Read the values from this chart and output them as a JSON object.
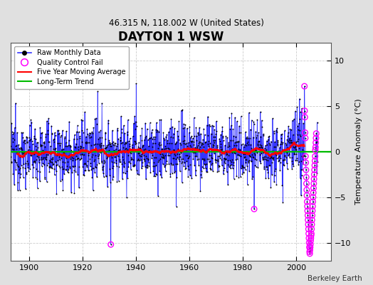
{
  "title": "DAYTON 1 WSW",
  "subtitle": "46.315 N, 118.002 W (United States)",
  "ylabel": "Temperature Anomaly (°C)",
  "credit": "Berkeley Earth",
  "xmin": 1893,
  "xmax": 2013,
  "ymin": -12,
  "ymax": 12,
  "yticks": [
    -10,
    -5,
    0,
    5,
    10
  ],
  "xticks": [
    1900,
    1920,
    1940,
    1960,
    1980,
    2000
  ],
  "bg_color": "#e0e0e0",
  "plot_bg_color": "#ffffff",
  "raw_line_color": "#3333ff",
  "raw_dot_color": "#000000",
  "moving_avg_color": "#ff0000",
  "trend_color": "#00bb00",
  "qc_fail_color": "#ff00ff",
  "seed": 12345
}
